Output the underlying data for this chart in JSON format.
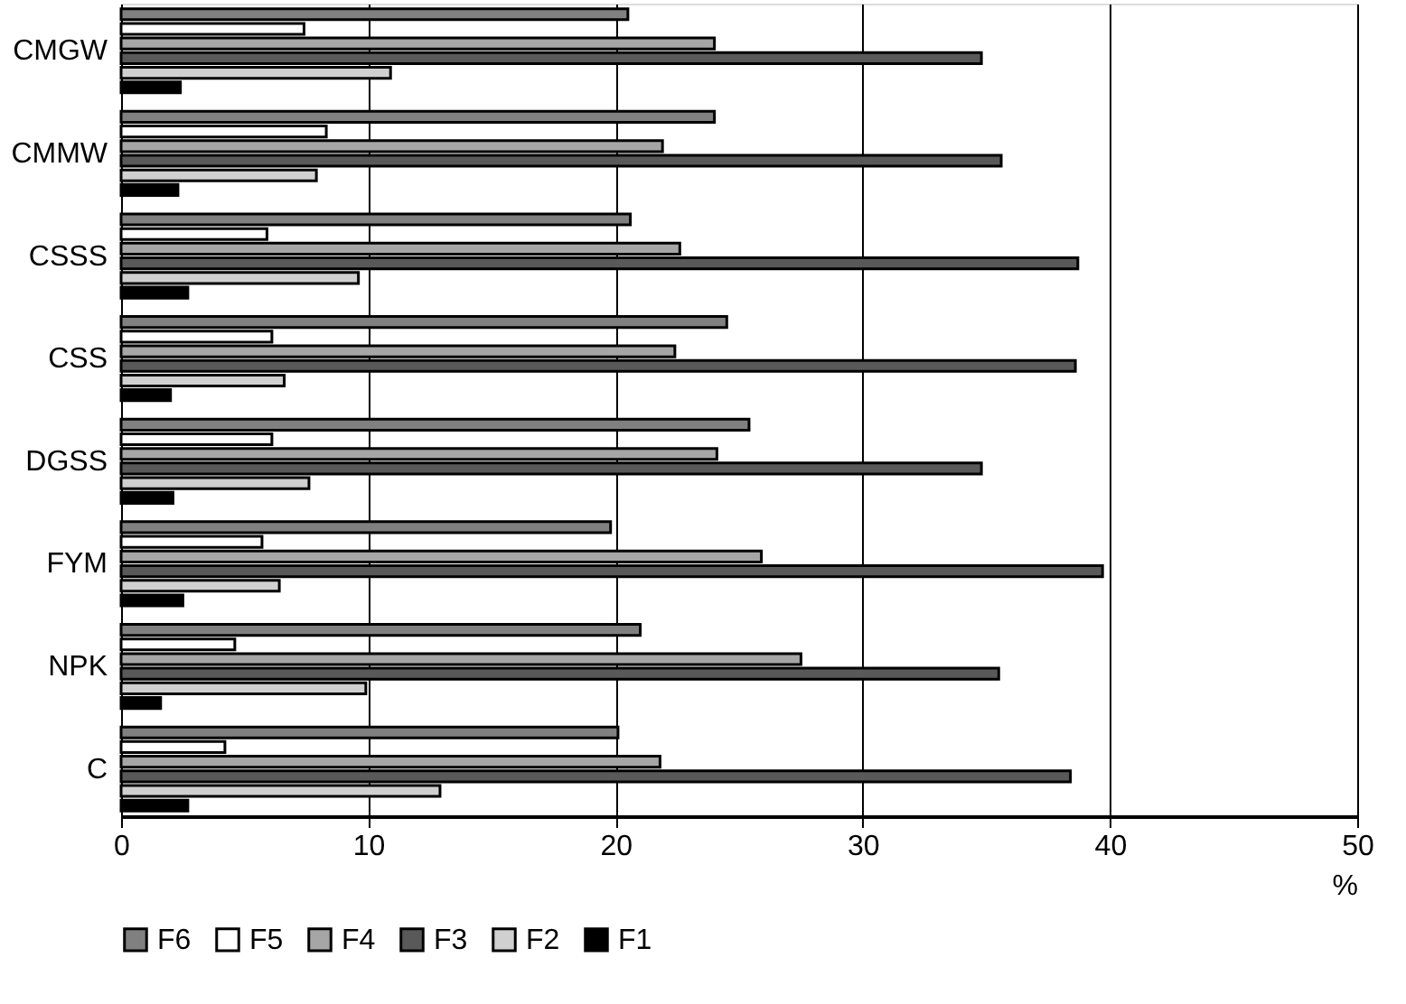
{
  "chart_data": {
    "type": "bar",
    "orientation": "horizontal",
    "categories": [
      "CMGW",
      "CMMW",
      "CSSS",
      "CSS",
      "DGSS",
      "FYM",
      "NPK",
      "C"
    ],
    "series": [
      {
        "name": "F6",
        "color": "#808080",
        "values": [
          20.5,
          24.0,
          20.6,
          24.5,
          25.4,
          19.8,
          21.0,
          20.1
        ]
      },
      {
        "name": "F5",
        "color": "#ffffff",
        "values": [
          7.4,
          8.3,
          5.9,
          6.1,
          6.1,
          5.7,
          4.6,
          4.2
        ]
      },
      {
        "name": "F4",
        "color": "#a6a6a6",
        "values": [
          24.0,
          21.9,
          22.6,
          22.4,
          24.1,
          25.9,
          27.5,
          21.8
        ]
      },
      {
        "name": "F3",
        "color": "#595959",
        "values": [
          34.8,
          35.6,
          38.7,
          38.6,
          34.8,
          39.7,
          35.5,
          38.4
        ]
      },
      {
        "name": "F2",
        "color": "#d0d0d0",
        "values": [
          10.9,
          7.9,
          9.6,
          6.6,
          7.6,
          6.4,
          9.9,
          12.9
        ]
      },
      {
        "name": "F1",
        "color": "#000000",
        "values": [
          2.4,
          2.3,
          2.7,
          2.0,
          2.1,
          2.5,
          1.6,
          2.7
        ]
      }
    ],
    "xlim": [
      0,
      50
    ],
    "xticks": [
      0,
      10,
      20,
      30,
      40,
      50
    ],
    "xlabel": "%",
    "grid": "x",
    "legend": "bottom"
  }
}
